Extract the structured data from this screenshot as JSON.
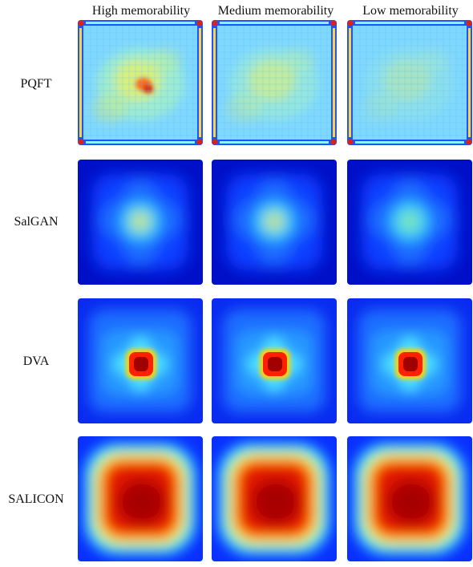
{
  "figure": {
    "columns": [
      "High memorability",
      "Medium memorability",
      "Low memorability"
    ],
    "rows": [
      {
        "label": "PQFT",
        "style": "pqft",
        "hotspot": [
          0.8,
          0.55,
          0.3
        ]
      },
      {
        "label": "SalGAN",
        "style": "salgan",
        "hotspot": [
          0.75,
          0.7,
          0.6
        ]
      },
      {
        "label": "DVA",
        "style": "dva",
        "hotspot": [
          1.0,
          1.0,
          1.0
        ]
      },
      {
        "label": "SALICON",
        "style": "salicon",
        "hotspot": [
          1.0,
          1.0,
          1.0
        ]
      }
    ],
    "colormap": "jet"
  }
}
